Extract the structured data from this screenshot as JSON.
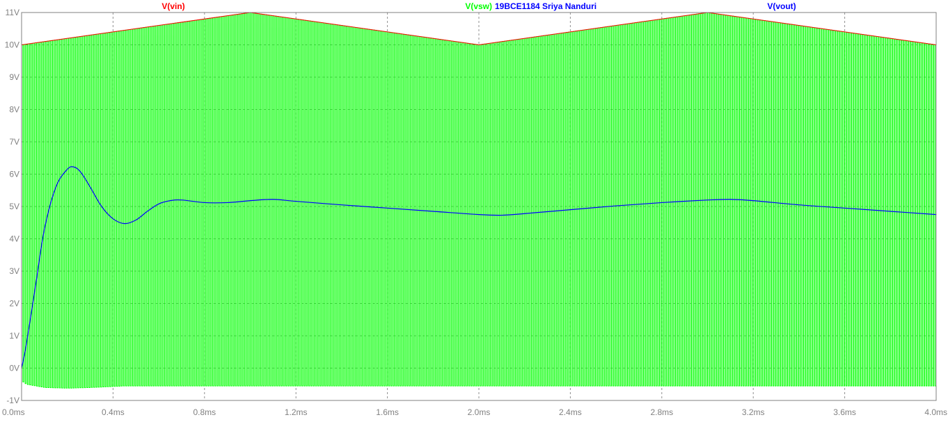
{
  "chart_data": {
    "type": "line",
    "title": "19BCE1184 Sriya Nanduri",
    "legend": [
      {
        "name": "V(vin)",
        "color": "#ff0000",
        "position": "left"
      },
      {
        "name": "V(vsw)",
        "color": "#00ff00",
        "position": "center"
      },
      {
        "name": "V(vout)",
        "color": "#0000ff",
        "position": "right"
      }
    ],
    "x_ticks": [
      "0.0ms",
      "0.4ms",
      "0.8ms",
      "1.2ms",
      "1.6ms",
      "2.0ms",
      "2.4ms",
      "2.8ms",
      "3.2ms",
      "3.6ms",
      "4.0ms"
    ],
    "y_ticks": [
      "-1V",
      "0V",
      "1V",
      "2V",
      "3V",
      "4V",
      "5V",
      "6V",
      "7V",
      "8V",
      "9V",
      "10V",
      "11V"
    ],
    "xlim": [
      0,
      4.0
    ],
    "ylim": [
      -1,
      11
    ],
    "x_unit": "ms",
    "y_unit": "V",
    "grid": true,
    "series": [
      {
        "name": "V(vin)",
        "color": "#ff0000",
        "x": [
          0.0,
          1.0,
          2.0,
          3.0,
          4.0
        ],
        "y": [
          10.0,
          11.0,
          10.0,
          11.0,
          10.0
        ]
      },
      {
        "name": "V(vsw)",
        "color": "#00ff00",
        "style": "switching",
        "switch_period_ms": 0.01,
        "low_envelope": {
          "x": [
            0.0,
            0.02,
            0.1,
            0.2,
            0.3,
            0.45,
            0.7,
            1.0,
            4.0
          ],
          "y": [
            -0.4,
            -0.5,
            -0.6,
            -0.62,
            -0.6,
            -0.55,
            -0.55,
            -0.55,
            -0.55
          ]
        },
        "high_envelope_follows": "V(vin)"
      },
      {
        "name": "V(vout)",
        "color": "#0000ff",
        "x": [
          0.0,
          0.02,
          0.06,
          0.1,
          0.15,
          0.2,
          0.23,
          0.26,
          0.3,
          0.35,
          0.4,
          0.45,
          0.5,
          0.55,
          0.6,
          0.65,
          0.7,
          0.8,
          0.9,
          1.0,
          1.1,
          1.2,
          1.4,
          1.6,
          1.8,
          2.0,
          2.1,
          2.2,
          2.4,
          2.6,
          2.8,
          3.0,
          3.1,
          3.2,
          3.4,
          3.6,
          3.8,
          4.0
        ],
        "y": [
          0.0,
          0.7,
          2.5,
          4.3,
          5.6,
          6.15,
          6.22,
          6.05,
          5.6,
          5.0,
          4.62,
          4.47,
          4.58,
          4.85,
          5.08,
          5.18,
          5.2,
          5.12,
          5.12,
          5.18,
          5.22,
          5.16,
          5.05,
          4.95,
          4.85,
          4.75,
          4.73,
          4.78,
          4.9,
          5.02,
          5.12,
          5.2,
          5.22,
          5.18,
          5.05,
          4.95,
          4.85,
          4.75
        ]
      }
    ]
  }
}
